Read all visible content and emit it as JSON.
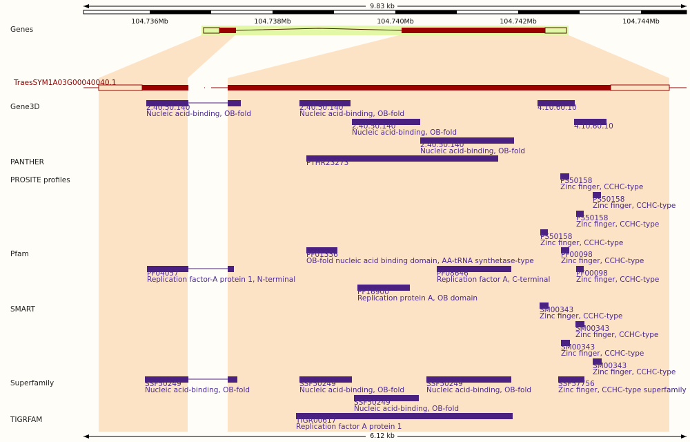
{
  "scale_top": "9.83 kb",
  "scale_bottom": "6.12 kb",
  "ticks": [
    "104.736Mb",
    "104.738Mb",
    "104.740Mb",
    "104.742Mb",
    "104.744Mb"
  ],
  "tracks": {
    "genes": "Genes",
    "gene3d": "Gene3D",
    "panther": "PANTHER",
    "prosite": "PROSITE profiles",
    "pfam": "Pfam",
    "smart": "SMART",
    "superfamily": "Superfamily",
    "tigrfam": "TIGRFAM"
  },
  "transcript_label": "TraesSYM1A03G00040040.1",
  "features": [
    {
      "id": "2.40.50.140",
      "desc": "Nucleic acid-binding, OB-fold"
    },
    {
      "id": "2.40.50.140",
      "desc": "Nucleic acid-binding, OB-fold"
    },
    {
      "id": "2.40.50.140",
      "desc": "Nucleic acid-binding, OB-fold"
    },
    {
      "id": "2.40.50.140",
      "desc": "Nucleic acid-binding, OB-fold"
    },
    {
      "id": "4.10.60.10",
      "desc": ""
    },
    {
      "id": "4.10.60.10",
      "desc": ""
    },
    {
      "id": "PTHR23273",
      "desc": ""
    },
    {
      "id": "PS50158",
      "desc": "Zinc finger, CCHC-type"
    },
    {
      "id": "PS50158",
      "desc": "Zinc finger, CCHC-type"
    },
    {
      "id": "PS50158",
      "desc": "Zinc finger, CCHC-type"
    },
    {
      "id": "PS50158",
      "desc": "Zinc finger, CCHC-type"
    },
    {
      "id": "PF01336",
      "desc": "OB-fold nucleic acid binding domain, AA-tRNA synthetase-type"
    },
    {
      "id": "PF00098",
      "desc": "Zinc finger, CCHC-type"
    },
    {
      "id": "PF04057",
      "desc": "Replication factor-A protein 1, N-terminal"
    },
    {
      "id": "PF08646",
      "desc": "Replication factor A, C-terminal"
    },
    {
      "id": "PF00098",
      "desc": "Zinc finger, CCHC-type"
    },
    {
      "id": "PF16900",
      "desc": "Replication protein A, OB domain"
    },
    {
      "id": "SM00343",
      "desc": "Zinc finger, CCHC-type"
    },
    {
      "id": "SM00343",
      "desc": "Zinc finger, CCHC-type"
    },
    {
      "id": "SM00343",
      "desc": "Zinc finger, CCHC-type"
    },
    {
      "id": "SM00343",
      "desc": "Zinc finger, CCHC-type"
    },
    {
      "id": "SSF50249",
      "desc": "Nucleic acid-binding, OB-fold"
    },
    {
      "id": "SSF50249",
      "desc": "Nucleic acid-binding, OB-fold"
    },
    {
      "id": "SSF50249",
      "desc": "Nucleic acid-binding, OB-fold"
    },
    {
      "id": "SSF57756",
      "desc": "Zinc finger, CCHC-type superfamily"
    },
    {
      "id": "SSF50249",
      "desc": "Nucleic acid-binding, OB-fold"
    },
    {
      "id": "TIGR00617",
      "desc": "Replication factor A protein 1"
    }
  ],
  "colors": {
    "background": "#fffdf7",
    "exon": "#990000",
    "utr": "#e3f8a6",
    "highlight": "#fde3c6",
    "feature": "#4a2080",
    "feature_text": "#4a2a90",
    "transcript_text": "#8b0000"
  }
}
